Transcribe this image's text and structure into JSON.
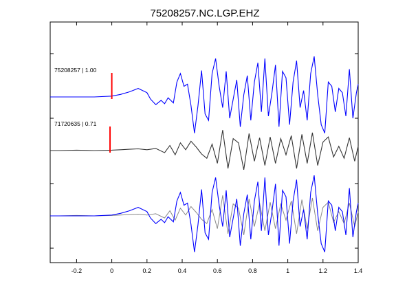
{
  "chart_data": {
    "type": "line",
    "title": "75208257.NC.LGP.EHZ",
    "xlim": [
      -0.35,
      1.4
    ],
    "x_ticks": [
      {
        "value": -0.2,
        "label": "-0.2"
      },
      {
        "value": 0,
        "label": "0"
      },
      {
        "value": 0.2,
        "label": "0.2"
      },
      {
        "value": 0.4,
        "label": "0.4"
      },
      {
        "value": 0.6,
        "label": "0.6"
      },
      {
        "value": 0.8,
        "label": "0.8"
      },
      {
        "value": 1.0,
        "label": "1"
      },
      {
        "value": 1.2,
        "label": "1.2"
      },
      {
        "value": 1.4,
        "label": "1.4"
      }
    ],
    "grid": false,
    "traces": [
      {
        "label": "75208257 | 1.00",
        "color": "#0000ff",
        "pick_time": 0,
        "pick_color": "#ff0000",
        "x": [
          -0.35,
          -0.3,
          -0.2,
          -0.1,
          0,
          0.05,
          0.1,
          0.15,
          0.2,
          0.22,
          0.25,
          0.28,
          0.3,
          0.32,
          0.35,
          0.37,
          0.39,
          0.41,
          0.43,
          0.45,
          0.47,
          0.49,
          0.51,
          0.53,
          0.55,
          0.57,
          0.59,
          0.61,
          0.63,
          0.65,
          0.67,
          0.69,
          0.71,
          0.73,
          0.75,
          0.77,
          0.79,
          0.81,
          0.83,
          0.85,
          0.87,
          0.89,
          0.91,
          0.93,
          0.95,
          0.97,
          0.99,
          1.01,
          1.03,
          1.05,
          1.07,
          1.09,
          1.11,
          1.13,
          1.15,
          1.17,
          1.19,
          1.21,
          1.23,
          1.25,
          1.27,
          1.29,
          1.31,
          1.33,
          1.35,
          1.37,
          1.39,
          1.4
        ],
        "y": [
          0,
          0,
          0,
          0,
          0.02,
          0.06,
          0.12,
          0.2,
          0.1,
          -0.05,
          -0.18,
          -0.08,
          -0.16,
          -0.02,
          -0.14,
          0.35,
          0.55,
          0.25,
          0.3,
          -0.2,
          -0.85,
          -0.2,
          0.62,
          -0.4,
          -0.55,
          0.55,
          0.9,
          0.25,
          -0.25,
          0.6,
          -0.5,
          -0.05,
          0.4,
          -0.7,
          0.05,
          0.5,
          -0.55,
          0.35,
          0.8,
          -0.35,
          0.9,
          -0.45,
          0.1,
          0.75,
          -0.7,
          0.6,
          0.45,
          -0.65,
          0.35,
          0.85,
          -0.25,
          0.15,
          -0.55,
          0.55,
          0.95,
          0.05,
          -0.65,
          -0.85,
          0.35,
          0.25,
          -0.35,
          0.2,
          0.1,
          -0.45,
          0.65,
          -0.5,
          0.1,
          0.3
        ]
      },
      {
        "label": "71720635 | 0.71",
        "color": "#333333",
        "pick_time": -0.01,
        "pick_color": "#ff0000",
        "x": [
          -0.35,
          -0.3,
          -0.2,
          -0.1,
          0,
          0.05,
          0.1,
          0.15,
          0.2,
          0.25,
          0.3,
          0.33,
          0.36,
          0.39,
          0.42,
          0.45,
          0.48,
          0.51,
          0.54,
          0.57,
          0.6,
          0.63,
          0.66,
          0.69,
          0.72,
          0.75,
          0.78,
          0.81,
          0.84,
          0.87,
          0.9,
          0.93,
          0.96,
          0.99,
          1.02,
          1.05,
          1.08,
          1.11,
          1.14,
          1.17,
          1.2,
          1.23,
          1.26,
          1.29,
          1.32,
          1.35,
          1.38,
          1.4
        ],
        "y": [
          0,
          0,
          0.01,
          0,
          0.01,
          0.02,
          0.03,
          0.04,
          0.02,
          0.05,
          -0.05,
          0.12,
          -0.1,
          0.18,
          0.02,
          0.22,
          0.08,
          -0.08,
          -0.18,
          0.15,
          -0.3,
          0.48,
          -0.42,
          0.28,
          0.18,
          -0.45,
          0.4,
          -0.25,
          0.3,
          -0.35,
          0.32,
          -0.3,
          0.28,
          -0.1,
          0.35,
          -0.42,
          0.38,
          -0.3,
          0.42,
          -0.35,
          0.2,
          0.32,
          -0.15,
          0.1,
          -0.18,
          0.3,
          -0.25,
          0.1
        ]
      },
      {
        "label": "",
        "color": "#0000ff",
        "overlay_color": "#888888",
        "x": [
          -0.35,
          -0.3,
          -0.2,
          -0.1,
          0,
          0.05,
          0.1,
          0.15,
          0.2,
          0.22,
          0.25,
          0.28,
          0.3,
          0.32,
          0.35,
          0.37,
          0.39,
          0.41,
          0.43,
          0.45,
          0.47,
          0.49,
          0.51,
          0.53,
          0.55,
          0.57,
          0.59,
          0.61,
          0.63,
          0.65,
          0.67,
          0.69,
          0.71,
          0.73,
          0.75,
          0.77,
          0.79,
          0.81,
          0.83,
          0.85,
          0.87,
          0.89,
          0.91,
          0.93,
          0.95,
          0.97,
          0.99,
          1.01,
          1.03,
          1.05,
          1.07,
          1.09,
          1.11,
          1.13,
          1.15,
          1.17,
          1.19,
          1.21,
          1.23,
          1.25,
          1.27,
          1.29,
          1.31,
          1.33,
          1.35,
          1.37,
          1.39,
          1.4
        ],
        "y": [
          0,
          0,
          0,
          0,
          0.02,
          0.06,
          0.12,
          0.2,
          0.1,
          -0.05,
          -0.18,
          -0.08,
          -0.16,
          -0.02,
          -0.14,
          0.35,
          0.55,
          0.25,
          0.3,
          -0.2,
          -0.85,
          -0.2,
          0.62,
          -0.4,
          -0.55,
          0.55,
          0.9,
          0.25,
          -0.25,
          0.6,
          -0.5,
          -0.05,
          0.4,
          -0.7,
          0.05,
          0.5,
          -0.55,
          0.35,
          0.8,
          -0.35,
          0.9,
          -0.45,
          0.1,
          0.75,
          -0.7,
          0.6,
          0.45,
          -0.65,
          0.35,
          0.85,
          -0.25,
          0.15,
          -0.55,
          0.55,
          0.95,
          0.05,
          -0.65,
          -0.85,
          0.35,
          0.25,
          -0.35,
          0.2,
          0.1,
          -0.45,
          0.65,
          -0.5,
          0.1,
          0.3
        ],
        "overlay_x": [
          -0.35,
          -0.3,
          -0.2,
          -0.1,
          0,
          0.05,
          0.1,
          0.15,
          0.2,
          0.25,
          0.3,
          0.33,
          0.36,
          0.39,
          0.42,
          0.45,
          0.48,
          0.51,
          0.54,
          0.57,
          0.6,
          0.63,
          0.66,
          0.69,
          0.72,
          0.75,
          0.78,
          0.81,
          0.84,
          0.87,
          0.9,
          0.93,
          0.96,
          0.99,
          1.02,
          1.05,
          1.08,
          1.11,
          1.14,
          1.17,
          1.2,
          1.23,
          1.26,
          1.29,
          1.32,
          1.35,
          1.38,
          1.4
        ],
        "overlay_y": [
          0,
          0,
          0.01,
          0,
          0.01,
          0.02,
          0.03,
          0.04,
          0.02,
          0.05,
          -0.05,
          0.12,
          -0.1,
          0.18,
          0.02,
          0.22,
          0.08,
          -0.08,
          -0.18,
          0.15,
          -0.3,
          0.48,
          -0.42,
          0.28,
          0.18,
          -0.45,
          0.4,
          -0.25,
          0.3,
          -0.35,
          0.32,
          -0.3,
          0.28,
          -0.1,
          0.35,
          -0.42,
          0.38,
          -0.3,
          0.42,
          -0.35,
          0.2,
          0.32,
          -0.15,
          0.1,
          -0.18,
          0.3,
          -0.25,
          0.1
        ]
      }
    ]
  }
}
